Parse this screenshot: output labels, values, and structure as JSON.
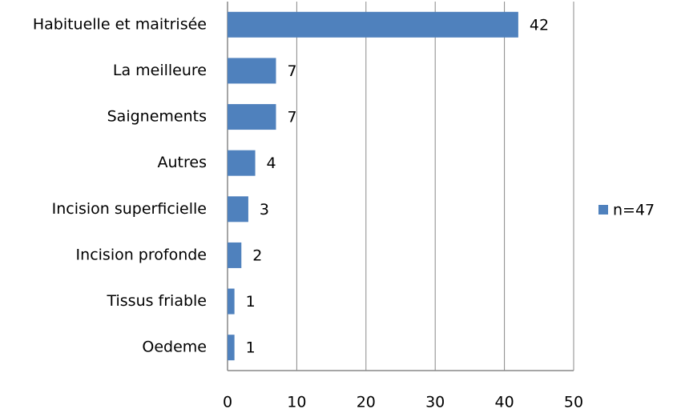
{
  "chart_data": {
    "type": "bar",
    "orientation": "horizontal",
    "categories": [
      "Habituelle et maitrisée",
      "La meilleure",
      "Saignements",
      "Autres",
      "Incision superficielle",
      "Incision profonde",
      "Tissus friable",
      "Oedeme"
    ],
    "series": [
      {
        "name": "n=47",
        "color": "#4f81bd",
        "values": [
          42,
          7,
          7,
          4,
          3,
          2,
          1,
          1
        ]
      }
    ],
    "xlim": [
      0,
      50
    ],
    "xticks": [
      0,
      10,
      20,
      30,
      40,
      50
    ],
    "grid": true,
    "legend": "right"
  }
}
